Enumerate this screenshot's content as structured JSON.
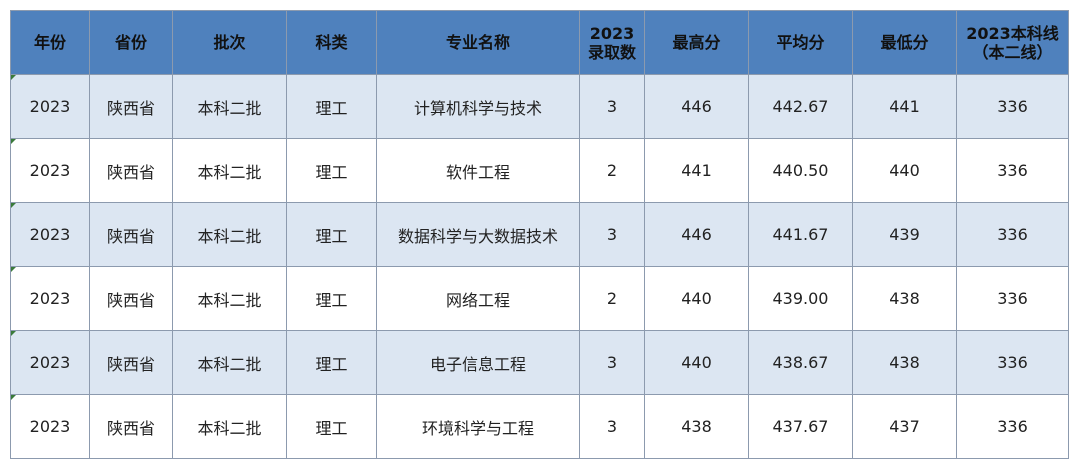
{
  "table": {
    "headers": [
      {
        "key": "year",
        "l1": "年份",
        "l2": ""
      },
      {
        "key": "province",
        "l1": "省份",
        "l2": ""
      },
      {
        "key": "batch",
        "l1": "批次",
        "l2": ""
      },
      {
        "key": "category",
        "l1": "科类",
        "l2": ""
      },
      {
        "key": "major",
        "l1": "专业名称",
        "l2": ""
      },
      {
        "key": "admitted",
        "l1": "2023",
        "l2": "录取数"
      },
      {
        "key": "max",
        "l1": "最高分",
        "l2": ""
      },
      {
        "key": "avg",
        "l1": "平均分",
        "l2": ""
      },
      {
        "key": "min",
        "l1": "最低分",
        "l2": ""
      },
      {
        "key": "line",
        "l1": "2023本科线",
        "l2": "（本二线）"
      }
    ],
    "rows": [
      [
        "2023",
        "陕西省",
        "本科二批",
        "理工",
        "计算机科学与技术",
        "3",
        "446",
        "442.67",
        "441",
        "336"
      ],
      [
        "2023",
        "陕西省",
        "本科二批",
        "理工",
        "软件工程",
        "2",
        "441",
        "440.50",
        "440",
        "336"
      ],
      [
        "2023",
        "陕西省",
        "本科二批",
        "理工",
        "数据科学与大数据技术",
        "3",
        "446",
        "441.67",
        "439",
        "336"
      ],
      [
        "2023",
        "陕西省",
        "本科二批",
        "理工",
        "网络工程",
        "2",
        "440",
        "439.00",
        "438",
        "336"
      ],
      [
        "2023",
        "陕西省",
        "本科二批",
        "理工",
        "电子信息工程",
        "3",
        "440",
        "438.67",
        "438",
        "336"
      ],
      [
        "2023",
        "陕西省",
        "本科二批",
        "理工",
        "环境科学与工程",
        "3",
        "438",
        "437.67",
        "437",
        "336"
      ]
    ]
  },
  "colors": {
    "header_bg": "#4f81bd",
    "band_odd": "#dce6f2",
    "band_even": "#ffffff",
    "border": "#8c9aae"
  }
}
